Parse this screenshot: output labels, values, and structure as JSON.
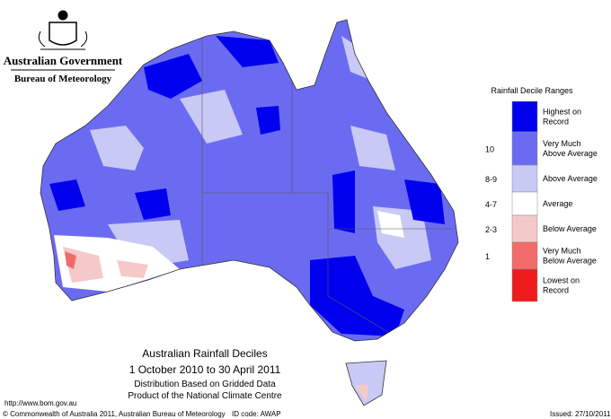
{
  "header": {
    "government": "Australian Government",
    "agency": "Bureau of Meteorology"
  },
  "legend": {
    "title": "Rainfall Decile Ranges",
    "items": [
      {
        "lines": [
          "Highest on",
          "Record"
        ],
        "color": "#0000ee"
      },
      {
        "range": "10",
        "lines": [
          "Very Much",
          "Above Average"
        ],
        "color": "#6b6bf2"
      },
      {
        "range": "8-9",
        "lines": [
          "Above Average"
        ],
        "color": "#c9c9f6"
      },
      {
        "range": "4-7",
        "lines": [
          "Average"
        ],
        "color": "#ffffff"
      },
      {
        "range": "2-3",
        "lines": [
          "Below Average"
        ],
        "color": "#f6c9c9"
      },
      {
        "range": "1",
        "lines": [
          "Very Much",
          "Below Average"
        ],
        "color": "#f26b6b"
      },
      {
        "lines": [
          "Lowest on",
          "Record"
        ],
        "color": "#ee1c1c"
      }
    ]
  },
  "map_title": {
    "title": "Australian Rainfall Deciles",
    "period": "1 October 2010 to 30 April 2011",
    "note1": "Distribution Based on Gridded Data",
    "note2": "Product of the National Climate Centre"
  },
  "footer": {
    "url": "http://www.bom.gov.au",
    "copyright": "© Commonwealth of Australia 2011, Australian Bureau of Meteorology",
    "id_code": "ID code: AWAP",
    "issued": "Issued: 27/10/2011"
  }
}
